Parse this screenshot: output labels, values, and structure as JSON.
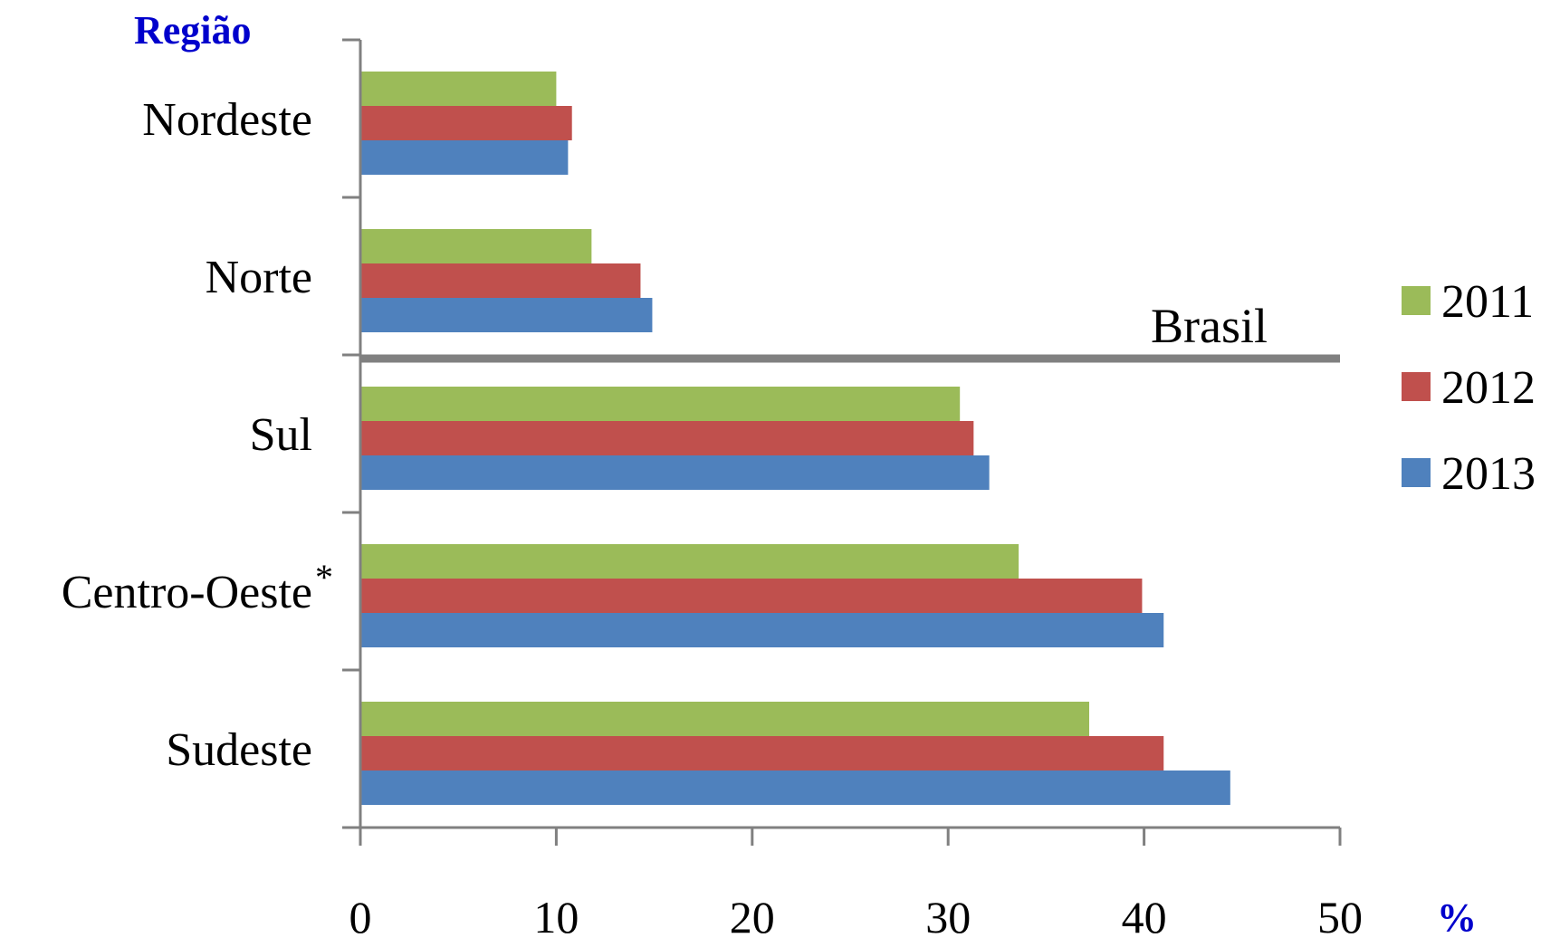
{
  "chart_data": {
    "type": "bar",
    "orientation": "horizontal",
    "y_axis_title": "Região",
    "x_axis_unit_label": "%",
    "categories": [
      "Nordeste",
      "Norte",
      "Sul",
      "Centro-Oeste",
      "Sudeste"
    ],
    "category_superscripts": [
      "",
      "",
      "",
      "*",
      ""
    ],
    "series": [
      {
        "name": "2011",
        "color": "#9BBB59",
        "values": [
          10.0,
          11.8,
          30.6,
          33.6,
          37.2
        ]
      },
      {
        "name": "2012",
        "color": "#C0504D",
        "values": [
          10.8,
          14.3,
          31.3,
          39.9,
          41.0
        ]
      },
      {
        "name": "2013",
        "color": "#4F81BD",
        "values": [
          10.6,
          14.9,
          32.1,
          41.0,
          44.4
        ]
      }
    ],
    "xlim": [
      0,
      50
    ],
    "x_ticks": [
      0,
      10,
      20,
      30,
      40,
      50
    ],
    "reference_line": {
      "label": "Brasil",
      "color": "#808080"
    },
    "grid": false,
    "legend_position": "right",
    "title_color": "#0000CC"
  }
}
